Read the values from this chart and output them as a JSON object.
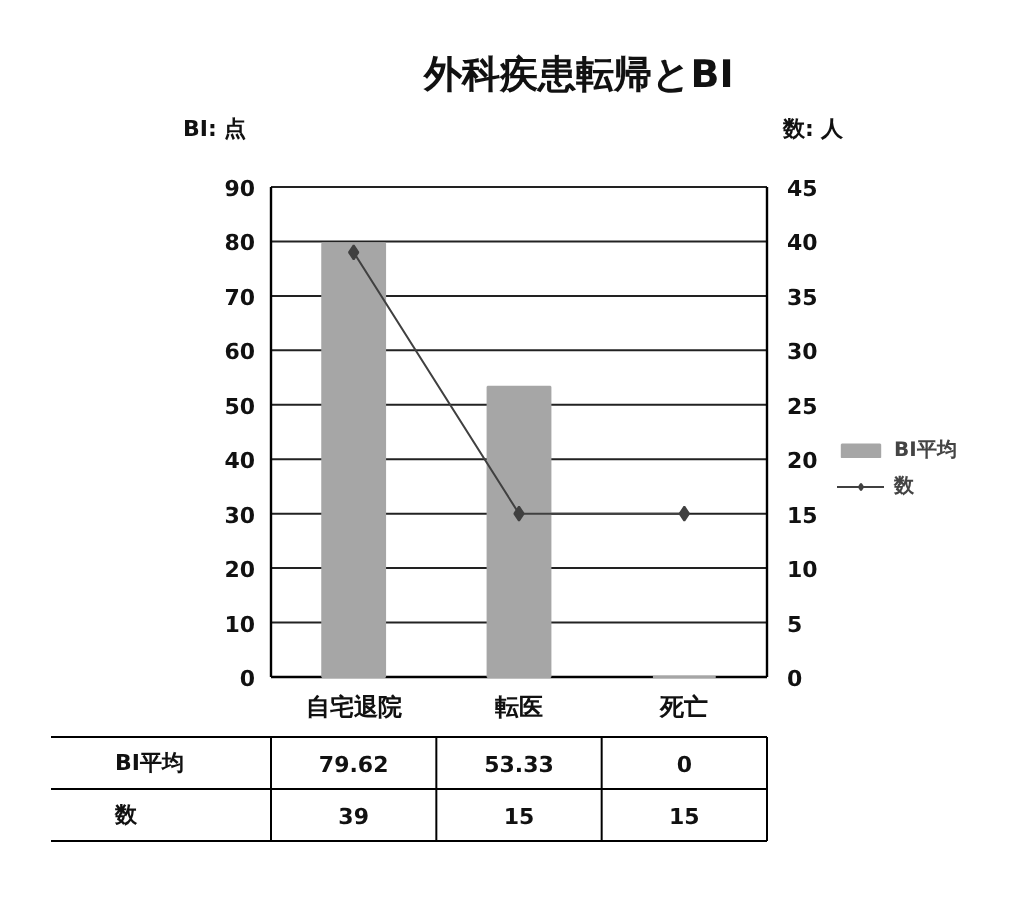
{
  "chart_data": {
    "type": "bar",
    "title": "外科疾患転帰とBI",
    "ylabel": "BI: 点",
    "y2label": "数: 人",
    "categories": [
      "自宅退院",
      "転医",
      "死亡"
    ],
    "series": [
      {
        "name": "BI平均",
        "color": "#a6a6a6",
        "values": [
          79.62,
          53.33,
          0
        ]
      },
      {
        "name": "数",
        "type": "line",
        "axis": "y2",
        "color": "#404040",
        "values": [
          39,
          15,
          15
        ]
      }
    ],
    "ylim": [
      0,
      90
    ],
    "yticks": [
      0,
      10,
      20,
      30,
      40,
      50,
      60,
      70,
      80,
      90
    ],
    "y2lim": [
      0,
      45
    ],
    "y2ticks": [
      0,
      5,
      10,
      15,
      20,
      25,
      30,
      35,
      40,
      45
    ],
    "grid": "y",
    "legend": "right",
    "marker": "diamond",
    "data_labels": true
  }
}
